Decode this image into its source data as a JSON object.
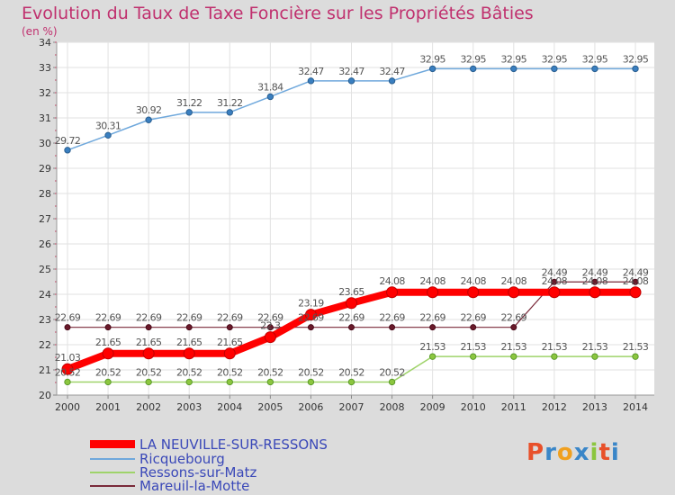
{
  "header": {
    "title": "Evolution du Taux de Taxe Foncière sur les Propriétés Bâties",
    "subtitle": "(en %)"
  },
  "logo": {
    "letters": [
      "P",
      "r",
      "o",
      "x",
      "i",
      "t",
      "i"
    ],
    "colors": [
      "#e8502a",
      "#3a86c8",
      "#f0a020",
      "#3a86c8",
      "#8cc63f",
      "#e8502a",
      "#3a86c8"
    ]
  },
  "chart_data": {
    "type": "line",
    "title": "Evolution du Taux de Taxe Foncière sur les Propriétés Bâties",
    "ylabel": "(en %)",
    "xlabel": "",
    "ylim": [
      20,
      34
    ],
    "yticks": [
      "20",
      "21",
      "22",
      "23",
      "24",
      "25",
      "26",
      "27",
      "28",
      "29",
      "30",
      "31",
      "32",
      "33",
      "34"
    ],
    "x": [
      "2000",
      "2001",
      "2002",
      "2003",
      "2004",
      "2005",
      "2006",
      "2007",
      "2008",
      "2009",
      "2010",
      "2011",
      "2012",
      "2013",
      "2014"
    ],
    "grid": true,
    "legend": "bottom-left",
    "series": [
      {
        "name": "LA NEUVILLE-SUR-RESSONS",
        "color": "#ff0000",
        "values": [
          21.03,
          21.65,
          21.65,
          21.65,
          21.65,
          22.3,
          23.19,
          23.65,
          24.08,
          24.08,
          24.08,
          24.08,
          24.08,
          24.08,
          24.08
        ],
        "labels": [
          "21.03",
          "21.65",
          "21.65",
          "21.65",
          "21.65",
          "22.3",
          "23.19",
          "23.65",
          "24.08",
          "24.08",
          "24.08",
          "24.08",
          "24.08",
          "24.08",
          "24.08"
        ]
      },
      {
        "name": "Ricquebourg",
        "color": "#6fa8dc",
        "values": [
          29.72,
          30.31,
          30.92,
          31.22,
          31.22,
          31.84,
          32.47,
          32.47,
          32.47,
          32.95,
          32.95,
          32.95,
          32.95,
          32.95,
          32.95
        ],
        "labels": [
          "29.72",
          "30.31",
          "30.92",
          "31.22",
          "31.22",
          "31.84",
          "32.47",
          "32.47",
          "32.47",
          "32.95",
          "32.95",
          "32.95",
          "32.95",
          "32.95",
          "32.95"
        ]
      },
      {
        "name": "Ressons-sur-Matz",
        "color": "#9fd36a",
        "values": [
          20.52,
          20.52,
          20.52,
          20.52,
          20.52,
          20.52,
          20.52,
          20.52,
          20.52,
          21.53,
          21.53,
          21.53,
          21.53,
          21.53,
          21.53
        ],
        "labels": [
          "20.52",
          "20.52",
          "20.52",
          "20.52",
          "20.52",
          "20.52",
          "20.52",
          "20.52",
          "20.52",
          "21.53",
          "21.53",
          "21.53",
          "21.53",
          "21.53",
          "21.53"
        ]
      },
      {
        "name": "Mareuil-la-Motte",
        "color": "#7a2a3a",
        "values": [
          22.69,
          22.69,
          22.69,
          22.69,
          22.69,
          22.69,
          22.69,
          22.69,
          22.69,
          22.69,
          22.69,
          22.69,
          24.49,
          24.49,
          24.49
        ],
        "labels": [
          "22.69",
          "22.69",
          "22.69",
          "22.69",
          "22.69",
          "22.69",
          "22.69",
          "22.69",
          "22.69",
          "22.69",
          "22.69",
          "22.69",
          "24.49",
          "24.49",
          "24.49"
        ]
      }
    ]
  }
}
